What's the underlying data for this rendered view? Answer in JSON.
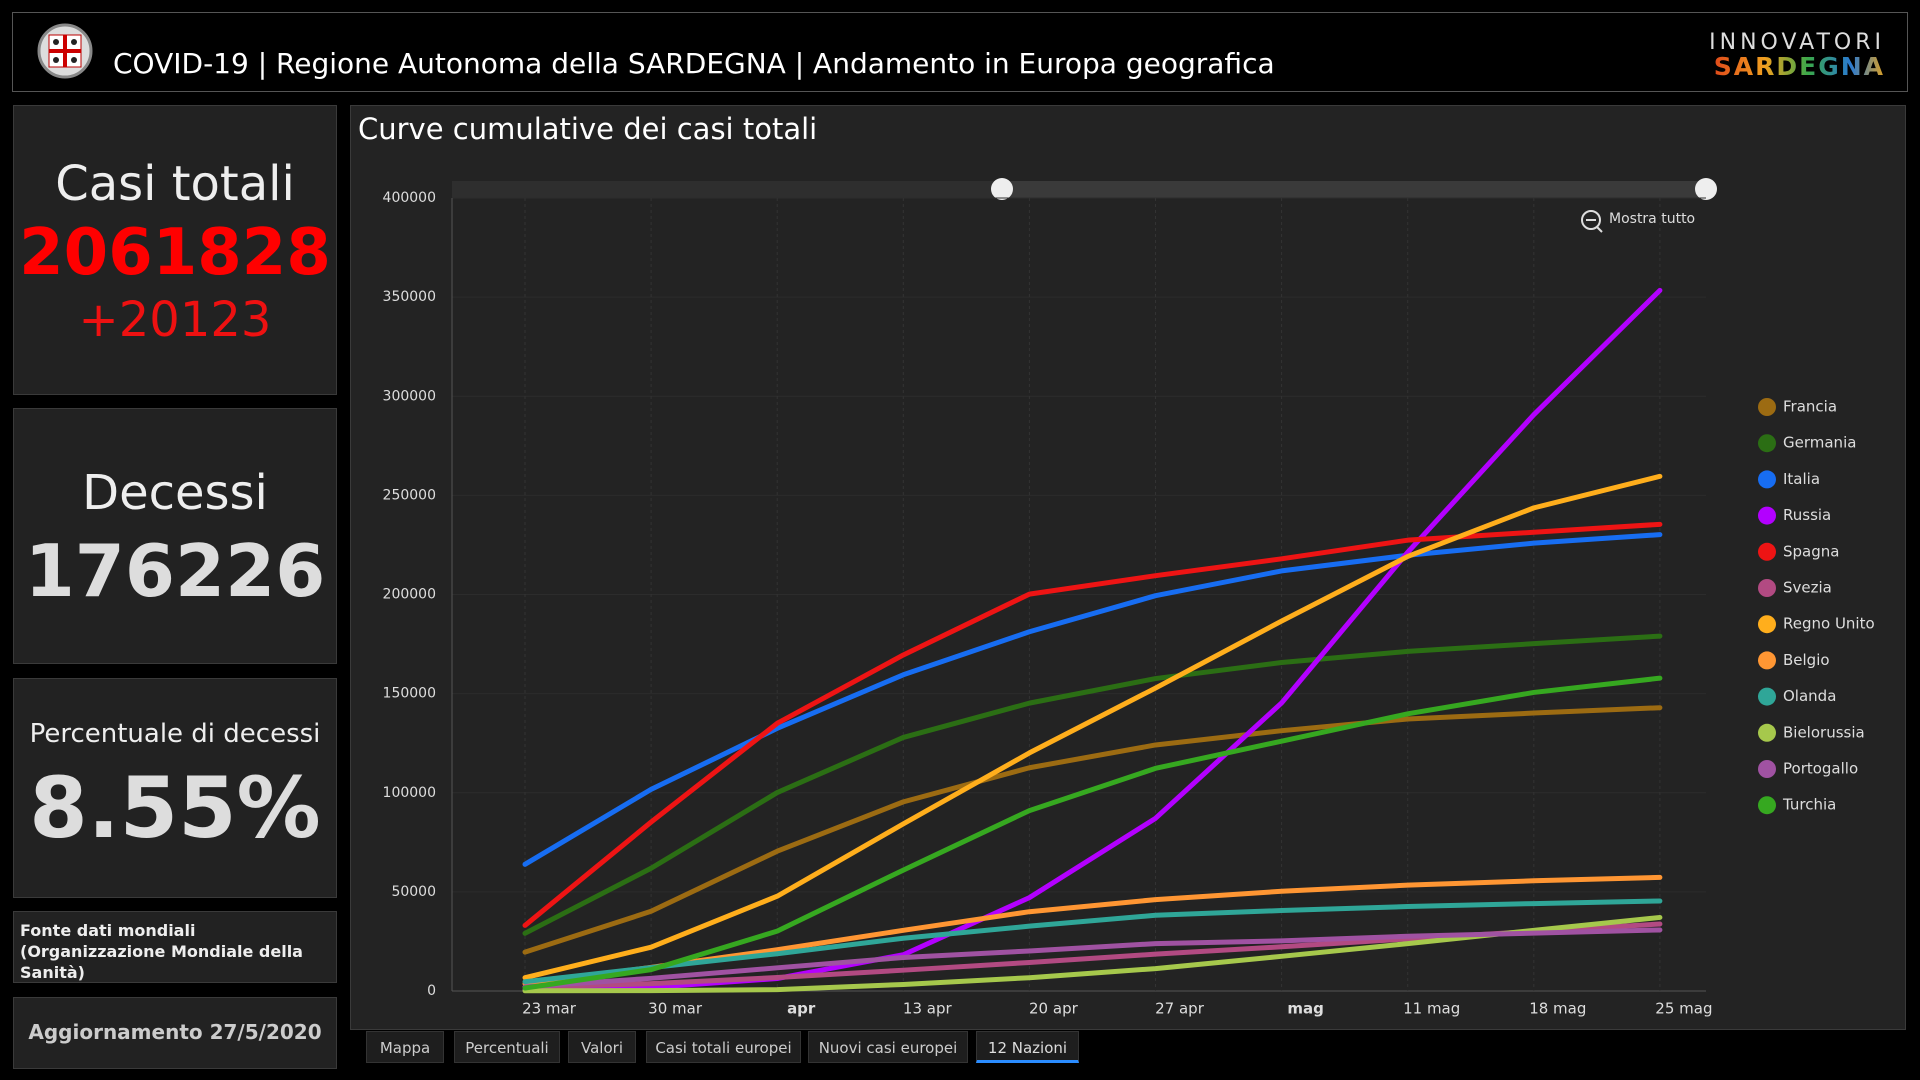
{
  "header": {
    "title": "COVID-19 | Regione Autonoma della SARDEGNA | Andamento in Europa geografica"
  },
  "logo": {
    "line1": "INNOVATORI",
    "line2": "SARDEGNA"
  },
  "panels": {
    "cases": {
      "label": "Casi totali",
      "value": 2061828,
      "change": "+20123"
    },
    "deaths": {
      "label": "Decessi",
      "value": 176226
    },
    "death_rate": {
      "label": "Percentuale di decessi",
      "value": "8.55%"
    },
    "source": "Fonte dati mondiali (Organizzazione Mondiale della Sanità)",
    "update": "Aggiornamento 27/5/2020"
  },
  "zoom_button": "Mostra tutto",
  "tabs": [
    "Mappa",
    "Percentuali",
    "Valori",
    "Casi totali europei",
    "Nuovi casi europei",
    "12 Nazioni"
  ],
  "chart_data": {
    "type": "line",
    "title": "Curve cumulative dei casi totali",
    "categories": [
      "23 mar",
      "30 mar",
      "apr",
      "13 apr",
      "20 apr",
      "27 apr",
      "mag",
      "11 mag",
      "18 mag",
      "25 mag"
    ],
    "ylim": [
      0,
      400000
    ],
    "yticks": [
      0,
      50000,
      100000,
      150000,
      200000,
      250000,
      300000,
      350000,
      400000
    ],
    "grid": true,
    "legend": "right",
    "series": [
      {
        "name": "Francia",
        "color": "#9c6b12",
        "values": [
          19600,
          40200,
          70500,
          95400,
          112600,
          124100,
          131300,
          137200,
          140200,
          142900
        ]
      },
      {
        "name": "Germania",
        "color": "#2b6e14",
        "values": [
          29100,
          61900,
          100100,
          127900,
          145200,
          157600,
          165700,
          171300,
          175200,
          179000
        ]
      },
      {
        "name": "Italia",
        "color": "#176df2",
        "values": [
          63900,
          101700,
          132500,
          159500,
          181200,
          199400,
          211900,
          219800,
          225900,
          230200
        ]
      },
      {
        "name": "Russia",
        "color": "#b300ff",
        "values": [
          400,
          1800,
          6300,
          18300,
          47100,
          87100,
          145300,
          221300,
          290700,
          353400
        ]
      },
      {
        "name": "Spagna",
        "color": "#ee1414",
        "values": [
          33100,
          85200,
          135000,
          169500,
          200200,
          209500,
          218000,
          227400,
          231400,
          235400
        ]
      },
      {
        "name": "Svezia",
        "color": "#b24a82",
        "values": [
          2000,
          3700,
          6800,
          10500,
          14400,
          18600,
          22300,
          26300,
          30100,
          33800
        ]
      },
      {
        "name": "Regno Unito",
        "color": "#ffae1c",
        "values": [
          6700,
          22100,
          47800,
          84300,
          120100,
          152800,
          186600,
          219200,
          243700,
          259600
        ]
      },
      {
        "name": "Belgio",
        "color": "#ff9633",
        "values": [
          3700,
          11900,
          20800,
          30600,
          40000,
          46100,
          50300,
          53400,
          55600,
          57300
        ]
      },
      {
        "name": "Olanda",
        "color": "#2fa698",
        "values": [
          4700,
          11800,
          18800,
          26600,
          32700,
          38200,
          40600,
          42600,
          44100,
          45400
        ]
      },
      {
        "name": "Bielorussia",
        "color": "#a6c84c",
        "values": [
          100,
          200,
          700,
          3300,
          6700,
          11300,
          17500,
          23900,
          30600,
          37100
        ]
      },
      {
        "name": "Portogallo",
        "color": "#a052a2",
        "values": [
          2100,
          6400,
          11700,
          16900,
          20200,
          23900,
          25300,
          27600,
          29200,
          30800
        ]
      },
      {
        "name": "Turchia",
        "color": "#36a820",
        "values": [
          1500,
          10800,
          30200,
          61000,
          91000,
          112300,
          126000,
          139800,
          150600,
          157800
        ]
      }
    ]
  }
}
